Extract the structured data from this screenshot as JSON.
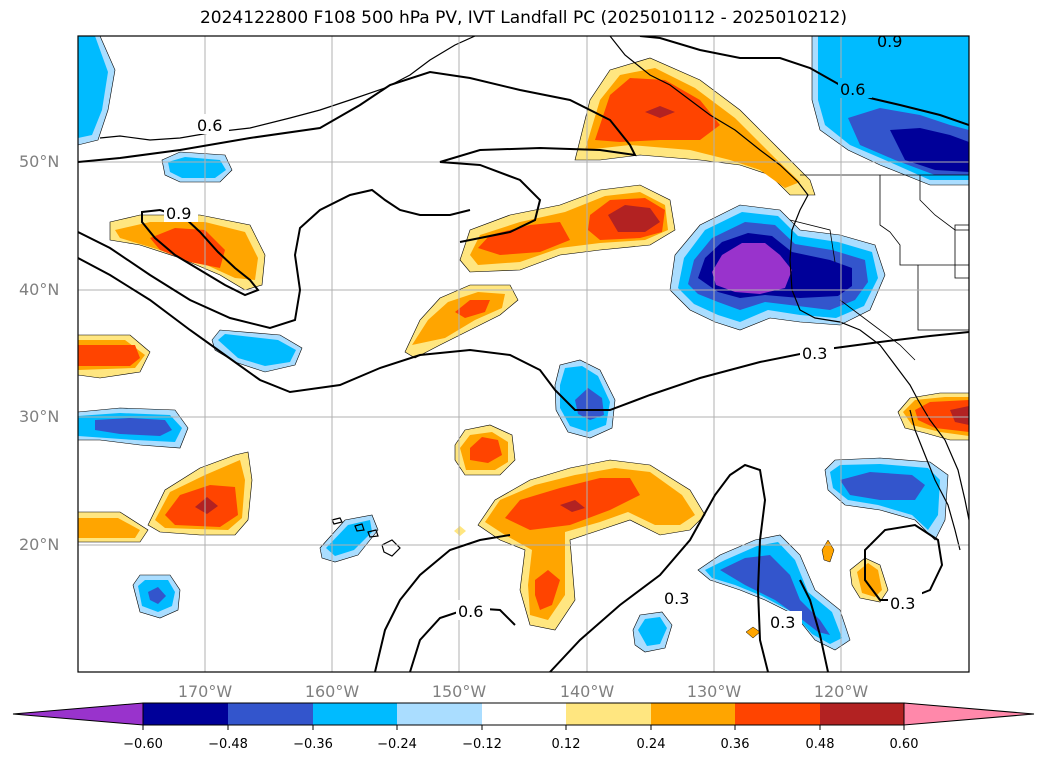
{
  "title": "2024122800 F108 500 hPa PV, IVT Landfall PC (2025010112 - 2025010212)",
  "lat_labels": [
    "50°N",
    "40°N",
    "30°N",
    "20°N"
  ],
  "lon_labels": [
    "170°W",
    "160°W",
    "150°W",
    "140°W",
    "130°W",
    "120°W"
  ],
  "contour_labels": {
    "c06_nw": "0.6",
    "c09_w": "0.9",
    "c09_ne": "0.9",
    "c06_ne": "0.6",
    "c03_e": "0.3",
    "c06_s": "0.6",
    "c03_s": "0.3",
    "c03_se": "0.3",
    "c03_far": "0.3"
  },
  "colorbar": {
    "labels": [
      "−0.60",
      "−0.48",
      "−0.36",
      "−0.24",
      "−0.12",
      "0.12",
      "0.24",
      "0.36",
      "0.48",
      "0.60"
    ],
    "colors": [
      "#9933cc",
      "#000099",
      "#3355cc",
      "#00bbff",
      "#aaddff",
      "#ffffff",
      "#ffe680",
      "#ffa500",
      "#ff4400",
      "#b22222",
      "#ff88aa"
    ]
  },
  "fill_colors": {
    "neg4": "#9933cc",
    "neg3": "#000099",
    "neg2": "#3355cc",
    "neg1": "#00bbff",
    "neg0": "#aaddff",
    "pos0": "#ffe680",
    "pos1": "#ffa500",
    "pos2": "#ff4400",
    "pos3": "#b22222"
  }
}
